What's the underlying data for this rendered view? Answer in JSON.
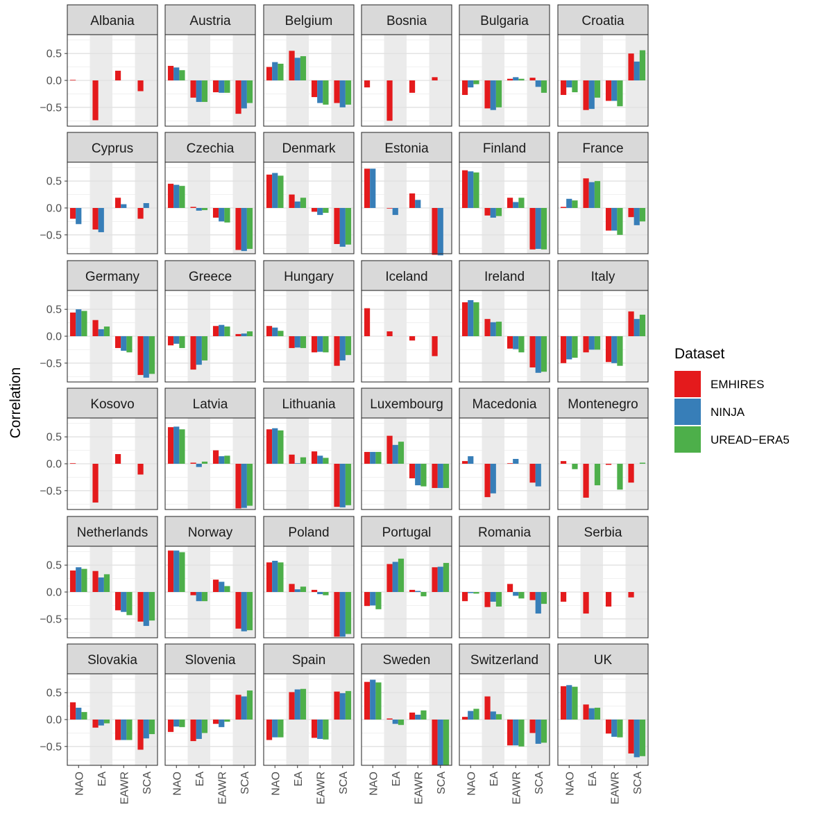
{
  "chart_data": {
    "type": "bar",
    "layout": "facet-grid",
    "ylabel": "Correlation",
    "ylim": [
      -0.85,
      0.85
    ],
    "yticks": [
      0.5,
      0.0,
      -0.5
    ],
    "ytick_labels": [
      "0.5",
      "0.0",
      "−0.5"
    ],
    "categories": [
      "NAO",
      "EA",
      "EAWR",
      "SCA"
    ],
    "shaded_categories": [
      "EA",
      "SCA"
    ],
    "legend": {
      "title": "Dataset",
      "placement": "right",
      "entries": [
        {
          "name": "EMHIRES",
          "color": "#e41a1c"
        },
        {
          "name": "NINJA",
          "color": "#377eb8"
        },
        {
          "name": "UREAD−ERA5",
          "color": "#4daf4a"
        }
      ]
    },
    "panels": [
      {
        "country": "Albania",
        "values": [
          [
            0.01,
            null,
            null
          ],
          [
            -0.74,
            null,
            null
          ],
          [
            0.18,
            null,
            null
          ],
          [
            -0.2,
            null,
            null
          ]
        ]
      },
      {
        "country": "Austria",
        "values": [
          [
            0.27,
            0.24,
            0.19
          ],
          [
            -0.32,
            -0.4,
            -0.4
          ],
          [
            -0.22,
            -0.23,
            -0.23
          ],
          [
            -0.62,
            -0.52,
            -0.42
          ]
        ]
      },
      {
        "country": "Belgium",
        "values": [
          [
            0.25,
            0.34,
            0.31
          ],
          [
            0.55,
            0.42,
            0.45
          ],
          [
            -0.31,
            -0.42,
            -0.45
          ],
          [
            -0.42,
            -0.5,
            -0.45
          ]
        ]
      },
      {
        "country": "Bosnia",
        "values": [
          [
            -0.13,
            null,
            null
          ],
          [
            -0.75,
            null,
            null
          ],
          [
            -0.23,
            null,
            null
          ],
          [
            0.06,
            null,
            null
          ]
        ]
      },
      {
        "country": "Bulgaria",
        "values": [
          [
            -0.27,
            -0.13,
            -0.07
          ],
          [
            -0.52,
            -0.55,
            -0.5
          ],
          [
            0.03,
            0.06,
            0.03
          ],
          [
            0.05,
            -0.12,
            -0.23
          ]
        ]
      },
      {
        "country": "Croatia",
        "values": [
          [
            -0.27,
            -0.13,
            -0.22
          ],
          [
            -0.55,
            -0.53,
            -0.32
          ],
          [
            -0.38,
            -0.38,
            -0.48
          ],
          [
            0.5,
            0.35,
            0.56
          ]
        ]
      },
      {
        "country": "Cyprus",
        "values": [
          [
            -0.2,
            -0.3,
            null
          ],
          [
            -0.4,
            -0.45,
            null
          ],
          [
            0.19,
            0.07,
            null
          ],
          [
            -0.2,
            0.09,
            null
          ]
        ]
      },
      {
        "country": "Czechia",
        "values": [
          [
            0.45,
            0.43,
            0.41
          ],
          [
            0.02,
            -0.05,
            -0.04
          ],
          [
            -0.18,
            -0.25,
            -0.27
          ],
          [
            -0.78,
            -0.8,
            -0.76
          ]
        ]
      },
      {
        "country": "Denmark",
        "values": [
          [
            0.62,
            0.65,
            0.6
          ],
          [
            0.25,
            0.12,
            0.19
          ],
          [
            -0.07,
            -0.13,
            -0.09
          ],
          [
            -0.67,
            -0.72,
            -0.68
          ]
        ]
      },
      {
        "country": "Estonia",
        "values": [
          [
            0.73,
            0.73,
            null
          ],
          [
            -0.01,
            -0.13,
            null
          ],
          [
            0.27,
            0.15,
            null
          ],
          [
            -0.87,
            -0.88,
            null
          ]
        ]
      },
      {
        "country": "Finland",
        "values": [
          [
            0.7,
            0.68,
            0.66
          ],
          [
            -0.14,
            -0.18,
            -0.15
          ],
          [
            0.19,
            0.11,
            0.19
          ],
          [
            -0.77,
            -0.76,
            -0.77
          ]
        ]
      },
      {
        "country": "France",
        "values": [
          [
            0.02,
            0.17,
            0.14
          ],
          [
            0.55,
            0.48,
            0.5
          ],
          [
            -0.42,
            -0.42,
            -0.5
          ],
          [
            -0.17,
            -0.32,
            -0.25
          ]
        ]
      },
      {
        "country": "Germany",
        "values": [
          [
            0.44,
            0.5,
            0.47
          ],
          [
            0.3,
            0.13,
            0.18
          ],
          [
            -0.22,
            -0.27,
            -0.3
          ],
          [
            -0.72,
            -0.77,
            -0.7
          ]
        ]
      },
      {
        "country": "Greece",
        "values": [
          [
            -0.17,
            -0.14,
            -0.22
          ],
          [
            -0.62,
            -0.53,
            -0.45
          ],
          [
            0.19,
            0.21,
            0.18
          ],
          [
            0.04,
            0.05,
            0.09
          ]
        ]
      },
      {
        "country": "Hungary",
        "values": [
          [
            0.19,
            0.16,
            0.1
          ],
          [
            -0.22,
            -0.21,
            -0.22
          ],
          [
            -0.3,
            -0.29,
            -0.3
          ],
          [
            -0.55,
            -0.45,
            -0.35
          ]
        ]
      },
      {
        "country": "Iceland",
        "values": [
          [
            0.52,
            null,
            null
          ],
          [
            0.09,
            null,
            null
          ],
          [
            -0.08,
            null,
            null
          ],
          [
            -0.37,
            null,
            null
          ]
        ]
      },
      {
        "country": "Ireland",
        "values": [
          [
            0.63,
            0.67,
            0.63
          ],
          [
            0.32,
            0.26,
            0.27
          ],
          [
            -0.23,
            -0.24,
            -0.3
          ],
          [
            -0.58,
            -0.68,
            -0.66
          ]
        ]
      },
      {
        "country": "Italy",
        "values": [
          [
            -0.5,
            -0.43,
            -0.4
          ],
          [
            -0.3,
            -0.25,
            -0.25
          ],
          [
            -0.48,
            -0.5,
            -0.55
          ],
          [
            0.46,
            0.32,
            0.4
          ]
        ]
      },
      {
        "country": "Kosovo",
        "values": [
          [
            0.01,
            null,
            null
          ],
          [
            -0.72,
            null,
            null
          ],
          [
            0.18,
            null,
            null
          ],
          [
            -0.2,
            null,
            null
          ]
        ]
      },
      {
        "country": "Latvia",
        "values": [
          [
            0.68,
            0.69,
            0.64
          ],
          [
            0.02,
            -0.06,
            0.04
          ],
          [
            0.25,
            0.14,
            0.15
          ],
          [
            -0.83,
            -0.82,
            -0.78
          ]
        ]
      },
      {
        "country": "Lithuania",
        "values": [
          [
            0.64,
            0.66,
            0.62
          ],
          [
            0.17,
            0.01,
            0.12
          ],
          [
            0.23,
            0.15,
            0.11
          ],
          [
            -0.8,
            -0.81,
            -0.77
          ]
        ]
      },
      {
        "country": "Luxembourg",
        "values": [
          [
            0.22,
            0.22,
            0.22
          ],
          [
            0.52,
            0.35,
            0.41
          ],
          [
            -0.27,
            -0.4,
            -0.42
          ],
          [
            -0.45,
            -0.45,
            -0.45
          ]
        ]
      },
      {
        "country": "Macedonia",
        "values": [
          [
            0.05,
            0.14,
            null
          ],
          [
            -0.62,
            -0.55,
            null
          ],
          [
            0.01,
            0.09,
            null
          ],
          [
            -0.35,
            -0.42,
            null
          ]
        ]
      },
      {
        "country": "Montenegro",
        "values": [
          [
            0.05,
            null,
            -0.1
          ],
          [
            -0.63,
            null,
            -0.4
          ],
          [
            -0.02,
            null,
            -0.48
          ],
          [
            -0.35,
            null,
            0.02
          ]
        ]
      },
      {
        "country": "Netherlands",
        "values": [
          [
            0.4,
            0.46,
            0.43
          ],
          [
            0.39,
            0.27,
            0.33
          ],
          [
            -0.34,
            -0.37,
            -0.43
          ],
          [
            -0.55,
            -0.63,
            -0.53
          ]
        ]
      },
      {
        "country": "Norway",
        "values": [
          [
            0.77,
            0.77,
            0.74
          ],
          [
            -0.06,
            -0.17,
            -0.17
          ],
          [
            0.23,
            0.19,
            0.11
          ],
          [
            -0.68,
            -0.73,
            -0.71
          ]
        ]
      },
      {
        "country": "Poland",
        "values": [
          [
            0.55,
            0.58,
            0.55
          ],
          [
            0.15,
            0.05,
            0.1
          ],
          [
            0.04,
            -0.04,
            -0.06
          ],
          [
            -0.83,
            -0.83,
            -0.78
          ]
        ]
      },
      {
        "country": "Portugal",
        "values": [
          [
            -0.26,
            -0.25,
            -0.32
          ],
          [
            0.52,
            0.56,
            0.62
          ],
          [
            0.04,
            0.02,
            -0.08
          ],
          [
            0.46,
            0.47,
            0.54
          ]
        ]
      },
      {
        "country": "Romania",
        "values": [
          [
            -0.17,
            -0.02,
            -0.03
          ],
          [
            -0.28,
            -0.18,
            -0.27
          ],
          [
            0.15,
            -0.07,
            -0.12
          ],
          [
            -0.15,
            -0.4,
            -0.22
          ]
        ]
      },
      {
        "country": "Serbia",
        "values": [
          [
            -0.18,
            null,
            null
          ],
          [
            -0.4,
            null,
            null
          ],
          [
            -0.27,
            null,
            null
          ],
          [
            -0.1,
            null,
            null
          ]
        ]
      },
      {
        "country": "Slovakia",
        "values": [
          [
            0.32,
            0.22,
            0.14
          ],
          [
            -0.15,
            -0.11,
            -0.07
          ],
          [
            -0.38,
            -0.38,
            -0.38
          ],
          [
            -0.56,
            -0.35,
            -0.27
          ]
        ]
      },
      {
        "country": "Slovenia",
        "values": [
          [
            -0.23,
            -0.13,
            -0.14
          ],
          [
            -0.4,
            -0.36,
            -0.25
          ],
          [
            -0.08,
            -0.14,
            -0.04
          ],
          [
            0.46,
            0.43,
            0.54
          ]
        ]
      },
      {
        "country": "Spain",
        "values": [
          [
            -0.38,
            -0.33,
            -0.33
          ],
          [
            0.51,
            0.56,
            0.57
          ],
          [
            -0.34,
            -0.36,
            -0.37
          ],
          [
            0.52,
            0.49,
            0.53
          ]
        ]
      },
      {
        "country": "Sweden",
        "values": [
          [
            0.7,
            0.74,
            0.69
          ],
          [
            0.02,
            -0.08,
            -0.1
          ],
          [
            0.13,
            0.09,
            0.17
          ],
          [
            -0.85,
            -0.85,
            -0.85
          ]
        ]
      },
      {
        "country": "Switzerland",
        "values": [
          [
            0.05,
            0.16,
            0.2
          ],
          [
            0.43,
            0.15,
            0.1
          ],
          [
            -0.48,
            -0.48,
            -0.5
          ],
          [
            -0.25,
            -0.45,
            -0.43
          ]
        ]
      },
      {
        "country": "UK",
        "values": [
          [
            0.62,
            0.64,
            0.61
          ],
          [
            0.28,
            0.21,
            0.22
          ],
          [
            -0.26,
            -0.32,
            -0.33
          ],
          [
            -0.63,
            -0.7,
            -0.68
          ]
        ]
      }
    ]
  }
}
